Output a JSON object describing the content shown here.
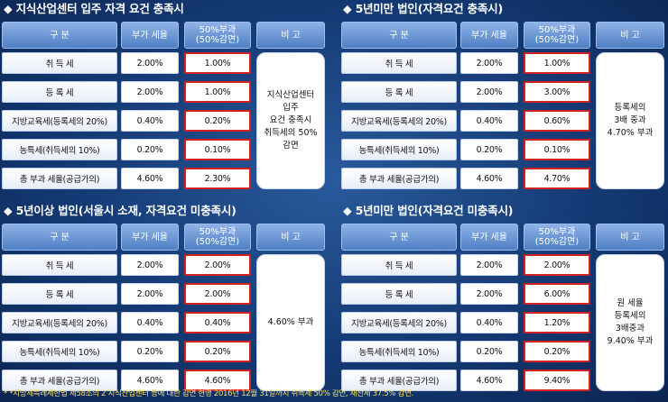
{
  "headers": {
    "category": "구 분",
    "tax_rate": "부가 세율",
    "surcharge": "50%부과\n(50%감면)",
    "remark": "비 고"
  },
  "row_labels": [
    "취 득 세",
    "등 록 세",
    "지방교육세(등록세의 20%)",
    "농특세(취득세의 10%)",
    "총 부과 세율(공급가의)"
  ],
  "panels": [
    {
      "title": "◆ 지식산업센터 입주 자격 요건 충족시",
      "rates": [
        "2.00%",
        "2.00%",
        "0.40%",
        "0.20%",
        "4.60%"
      ],
      "surcharges": [
        "1.00%",
        "1.00%",
        "0.20%",
        "0.10%",
        "2.30%"
      ],
      "remark": "지식산업센터\n입주\n요건 충족시\n취득세의 50%\n감면"
    },
    {
      "title": "◆ 5년미만 법인(자격요건 충족시)",
      "rates": [
        "2.00%",
        "2.00%",
        "0.40%",
        "0.20%",
        "4.60%"
      ],
      "surcharges": [
        "1.00%",
        "3.00%",
        "0.60%",
        "0.10%",
        "4.70%"
      ],
      "remark": "등록세의\n3배 중과\n4.70% 부과"
    },
    {
      "title": "◆ 5년이상 법인(서울시 소재, 자격요건 미충족시)",
      "rates": [
        "2.00%",
        "2.00%",
        "0.40%",
        "0.20%",
        "4.60%"
      ],
      "surcharges": [
        "2.00%",
        "2.00%",
        "0.40%",
        "0.20%",
        "4.60%"
      ],
      "remark": "4.60% 부과"
    },
    {
      "title": "◆ 5년미만 법인(자격요건 미충족시)",
      "rates": [
        "2.00%",
        "2.00%",
        "0.40%",
        "0.20%",
        "4.60%"
      ],
      "surcharges": [
        "2.00%",
        "6.00%",
        "1.20%",
        "0.20%",
        "9.40%"
      ],
      "remark": "원 세율\n등록세의\n3배중과\n9.40% 부과"
    }
  ],
  "footnote": "* *지방세특례제한법 제58조의 2 지식산업센터 등에 대한 감면 현행 2016년 12월 31일까지 취득세 50% 감면, 재산세 37.5% 감면."
}
